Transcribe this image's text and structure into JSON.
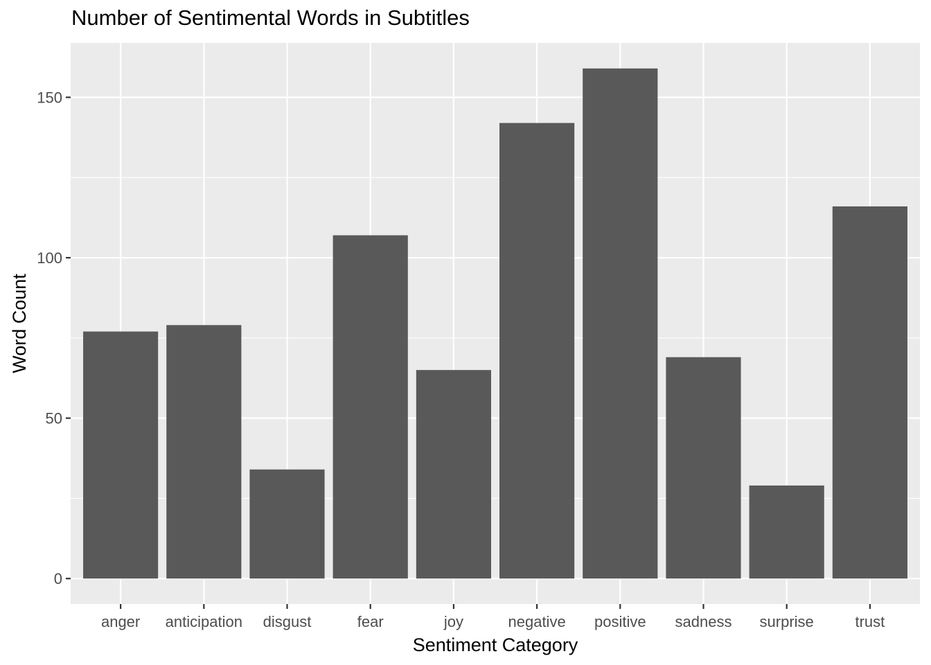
{
  "chart_data": {
    "type": "bar",
    "title": "Number of Sentimental Words in Subtitles",
    "xlabel": "Sentiment Category",
    "ylabel": "Word Count",
    "categories": [
      "anger",
      "anticipation",
      "disgust",
      "fear",
      "joy",
      "negative",
      "positive",
      "sadness",
      "surprise",
      "trust"
    ],
    "values": [
      77,
      79,
      34,
      107,
      65,
      142,
      159,
      69,
      29,
      116
    ],
    "ylim": [
      -7.95,
      166.95
    ],
    "yticks": [
      0,
      50,
      100,
      150
    ],
    "ytick_labels": [
      "0",
      "50",
      "100",
      "150"
    ],
    "grid": true,
    "bar_color": "#595959",
    "panel_color": "#ebebeb",
    "grid_color": "#ffffff"
  }
}
